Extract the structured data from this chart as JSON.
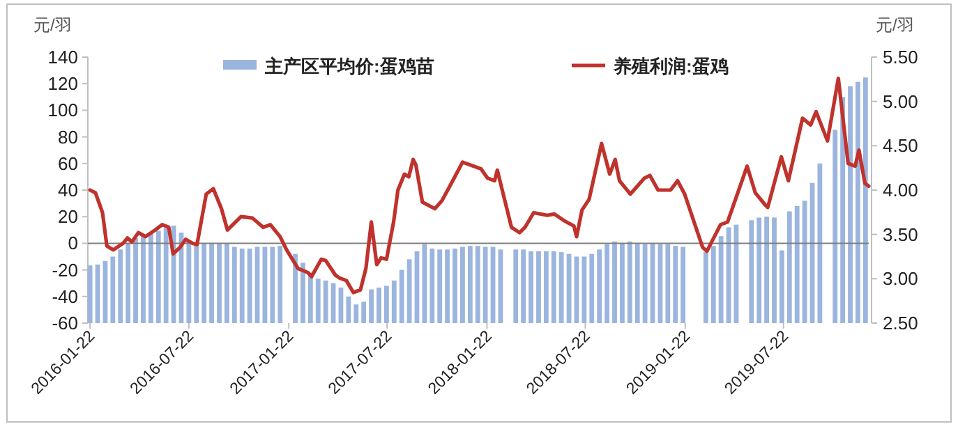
{
  "chart_data": {
    "type": "bar",
    "ylabel": "元/羽",
    "y2label": "元/羽",
    "xlim": [
      "2016-01-18",
      "2019-12-26"
    ],
    "xticks": [
      "2016-01-22",
      "2016-07-22",
      "2017-01-22",
      "2017-07-22",
      "2018-01-22",
      "2018-07-22",
      "2019-01-22",
      "2019-07-22"
    ],
    "ylim": [
      -60,
      140
    ],
    "yticks": [
      -60,
      -40,
      -20,
      0,
      20,
      40,
      60,
      80,
      100,
      120,
      140
    ],
    "y2lim": [
      2.5,
      5.5
    ],
    "y2ticks": [
      {
        "value": 2.5,
        "label": "2.50"
      },
      {
        "value": 3,
        "label": "3.00"
      },
      {
        "value": 3.5,
        "label": "3.50"
      },
      {
        "value": 4,
        "label": "4.00"
      },
      {
        "value": 4.5,
        "label": "4.50"
      },
      {
        "value": 5,
        "label": "5.00"
      },
      {
        "value": 5.5,
        "label": "5.50"
      }
    ],
    "ref_lines": [
      {
        "axis": "y",
        "value": 0,
        "color": "#7f7f7f"
      }
    ],
    "legend": "top",
    "grid": false,
    "series": [
      {
        "name": "主产区平均价:蛋鸡苗",
        "axis": "y2",
        "color": "#9bb5de",
        "x": [
          "2016-01-22",
          "2016-02-05",
          "2016-02-19",
          "2016-03-04",
          "2016-03-18",
          "2016-04-01",
          "2016-04-15",
          "2016-04-29",
          "2016-05-13",
          "2016-05-27",
          "2016-06-10",
          "2016-06-24",
          "2016-07-08",
          "2016-07-22",
          "2016-08-05",
          "2016-08-19",
          "2016-09-02",
          "2016-09-16",
          "2016-09-30",
          "2016-10-14",
          "2016-10-28",
          "2016-11-11",
          "2016-11-25",
          "2016-12-09",
          "2016-12-23",
          "2017-01-06",
          "2017-01-20",
          "2017-02-03",
          "2017-02-17",
          "2017-03-03",
          "2017-03-17",
          "2017-03-31",
          "2017-04-14",
          "2017-04-28",
          "2017-05-12",
          "2017-05-26",
          "2017-06-09",
          "2017-06-23",
          "2017-07-07",
          "2017-07-21",
          "2017-08-04",
          "2017-08-18",
          "2017-09-01",
          "2017-09-15",
          "2017-09-29",
          "2017-10-13",
          "2017-10-27",
          "2017-11-10",
          "2017-11-24",
          "2017-12-08",
          "2017-12-22",
          "2018-01-05",
          "2018-01-19",
          "2018-02-02",
          "2018-02-16",
          "2018-03-02",
          "2018-03-16",
          "2018-03-30",
          "2018-04-13",
          "2018-04-27",
          "2018-05-11",
          "2018-05-25",
          "2018-06-08",
          "2018-06-22",
          "2018-07-06",
          "2018-07-20",
          "2018-08-03",
          "2018-08-17",
          "2018-08-31",
          "2018-09-14",
          "2018-09-28",
          "2018-10-12",
          "2018-10-26",
          "2018-11-09",
          "2018-11-23",
          "2018-12-07",
          "2018-12-21",
          "2019-01-04",
          "2019-01-18",
          "2019-02-01",
          "2019-02-15",
          "2019-03-01",
          "2019-03-15",
          "2019-03-29",
          "2019-04-12",
          "2019-04-26",
          "2019-05-10",
          "2019-05-24",
          "2019-06-07",
          "2019-06-21",
          "2019-07-05",
          "2019-07-19",
          "2019-08-02",
          "2019-08-16",
          "2019-08-30",
          "2019-09-13",
          "2019-09-27",
          "2019-10-11",
          "2019-10-25",
          "2019-11-08",
          "2019-11-22",
          "2019-12-06",
          "2019-12-20"
        ],
        "values": [
          3.15,
          3.16,
          3.2,
          3.25,
          3.33,
          3.4,
          3.46,
          3.49,
          3.52,
          3.54,
          3.57,
          3.6,
          3.52,
          3.43,
          3.4,
          3.4,
          3.4,
          3.4,
          3.4,
          3.36,
          3.34,
          3.34,
          3.36,
          3.36,
          3.36,
          3.37,
          null,
          3.28,
          3.18,
          3.07,
          3.0,
          2.98,
          2.95,
          2.9,
          2.8,
          2.71,
          2.74,
          2.88,
          2.9,
          2.92,
          2.98,
          3.1,
          3.22,
          3.31,
          3.39,
          3.34,
          3.33,
          3.33,
          3.34,
          3.36,
          3.37,
          3.37,
          3.36,
          3.36,
          3.33,
          null,
          3.33,
          3.33,
          3.31,
          3.31,
          3.31,
          3.31,
          3.3,
          3.28,
          3.25,
          3.25,
          3.28,
          3.33,
          3.39,
          3.42,
          3.4,
          3.42,
          3.4,
          3.39,
          3.4,
          3.39,
          3.39,
          3.37,
          3.36,
          null,
          null,
          3.3,
          3.37,
          3.48,
          3.58,
          3.61,
          null,
          3.66,
          3.69,
          3.7,
          3.69,
          3.32,
          3.76,
          3.82,
          3.88,
          4.08,
          4.3,
          null,
          4.68,
          5.05,
          5.17,
          5.22,
          5.27
        ]
      },
      {
        "name": "养殖利润:蛋鸡",
        "type": "line",
        "color": "#c0322c",
        "x": [
          "2016-01-22",
          "2016-02-01",
          "2016-02-14",
          "2016-02-22",
          "2016-03-05",
          "2016-03-23",
          "2016-03-31",
          "2016-04-08",
          "2016-04-20",
          "2016-05-03",
          "2016-05-21",
          "2016-06-03",
          "2016-06-15",
          "2016-06-23",
          "2016-07-06",
          "2016-07-16",
          "2016-07-29",
          "2016-08-06",
          "2016-08-23",
          "2016-09-05",
          "2016-09-20",
          "2016-10-01",
          "2016-10-26",
          "2016-11-16",
          "2016-12-06",
          "2016-12-19",
          "2017-01-06",
          "2017-01-18",
          "2017-02-08",
          "2017-02-26",
          "2017-03-05",
          "2017-03-23",
          "2017-03-31",
          "2017-04-18",
          "2017-04-25",
          "2017-05-08",
          "2017-05-21",
          "2017-06-03",
          "2017-06-13",
          "2017-06-23",
          "2017-07-03",
          "2017-07-11",
          "2017-07-21",
          "2017-08-03",
          "2017-08-11",
          "2017-08-23",
          "2017-08-31",
          "2017-09-08",
          "2017-09-13",
          "2017-09-25",
          "2017-10-18",
          "2017-10-31",
          "2017-11-16",
          "2017-12-08",
          "2018-01-11",
          "2018-01-23",
          "2018-02-05",
          "2018-02-10",
          "2018-03-08",
          "2018-03-23",
          "2018-04-02",
          "2018-04-18",
          "2018-05-13",
          "2018-05-26",
          "2018-06-13",
          "2018-07-01",
          "2018-07-06",
          "2018-07-16",
          "2018-07-29",
          "2018-08-21",
          "2018-09-05",
          "2018-09-15",
          "2018-09-23",
          "2018-10-13",
          "2018-11-08",
          "2018-11-18",
          "2018-12-03",
          "2018-12-26",
          "2019-01-08",
          "2019-01-21",
          "2019-02-23",
          "2019-03-03",
          "2019-03-28",
          "2019-04-10",
          "2019-05-16",
          "2019-05-31",
          "2019-06-18",
          "2019-06-23",
          "2019-07-18",
          "2019-07-31",
          "2019-08-26",
          "2019-09-10",
          "2019-09-20",
          "2019-10-11",
          "2019-10-31",
          "2019-11-18",
          "2019-12-01",
          "2019-12-08",
          "2019-12-19",
          "2019-12-26"
        ],
        "values": [
          40,
          38,
          23,
          -2,
          -5,
          0,
          4,
          1,
          8,
          5,
          10,
          14,
          12,
          -8,
          -3,
          3,
          0,
          -1,
          37,
          41,
          26,
          10,
          20,
          19,
          12,
          14,
          5,
          -5,
          -19,
          -22,
          -25,
          -12,
          -13,
          -24,
          -26,
          -28,
          -37,
          -35,
          -19,
          16,
          -16,
          -11,
          -12,
          16,
          40,
          52,
          50,
          63,
          59,
          31,
          26,
          32,
          44,
          61,
          56,
          49,
          47,
          55,
          12,
          8,
          12,
          23,
          21,
          22,
          17,
          13,
          5,
          25,
          33,
          75,
          52,
          63,
          47,
          37,
          49,
          51,
          40,
          40,
          47,
          37,
          -3,
          -6,
          14,
          16,
          58,
          38,
          29,
          27,
          65,
          47,
          94,
          89,
          99,
          77,
          124,
          60,
          58,
          70,
          45,
          43
        ]
      }
    ]
  }
}
